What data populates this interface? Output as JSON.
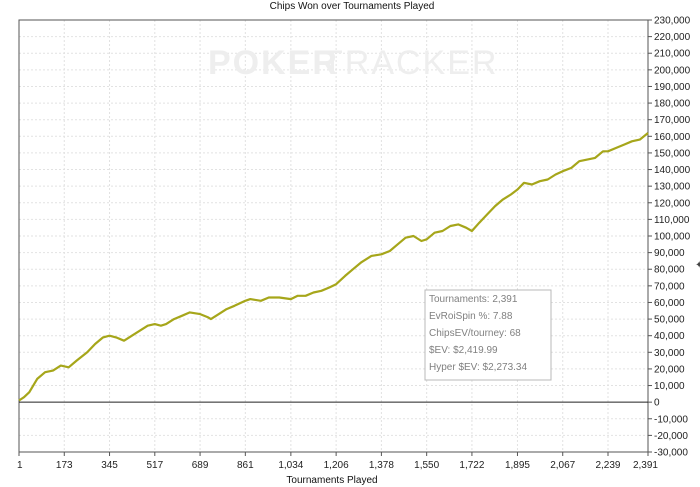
{
  "chart_data": {
    "type": "line",
    "title": "Chips Won over Tournaments Played",
    "xlabel": "Tournaments Played",
    "ylabel": "",
    "xlim": [
      1,
      2391
    ],
    "ylim": [
      -30000,
      230000
    ],
    "x_ticks": [
      "1",
      "173",
      "345",
      "517",
      "689",
      "861",
      "1,034",
      "1,206",
      "1,378",
      "1,550",
      "1,722",
      "1,895",
      "2,067",
      "2,239",
      "2,391"
    ],
    "x_tick_values": [
      1,
      173,
      345,
      517,
      689,
      861,
      1034,
      1206,
      1378,
      1550,
      1722,
      1895,
      2067,
      2239,
      2391
    ],
    "y_ticks": [
      "-30,000",
      "-20,000",
      "-10,000",
      "0",
      "10,000",
      "20,000",
      "30,000",
      "40,000",
      "50,000",
      "60,000",
      "70,000",
      "80,000",
      "90,000",
      "100,000",
      "110,000",
      "120,000",
      "130,000",
      "140,000",
      "150,000",
      "160,000",
      "170,000",
      "180,000",
      "190,000",
      "200,000",
      "210,000",
      "220,000",
      "230,000"
    ],
    "y_tick_values": [
      -30000,
      -20000,
      -10000,
      0,
      10000,
      20000,
      30000,
      40000,
      50000,
      60000,
      70000,
      80000,
      90000,
      100000,
      110000,
      120000,
      130000,
      140000,
      150000,
      160000,
      170000,
      180000,
      190000,
      200000,
      210000,
      220000,
      230000
    ],
    "grid": true,
    "series": [
      {
        "color": "#a6a61a",
        "x": [
          1,
          20,
          40,
          70,
          100,
          130,
          160,
          190,
          220,
          260,
          290,
          320,
          345,
          370,
          400,
          430,
          460,
          490,
          517,
          540,
          560,
          590,
          620,
          650,
          689,
          720,
          730,
          760,
          790,
          820,
          861,
          880,
          920,
          950,
          990,
          1034,
          1060,
          1090,
          1120,
          1150,
          1180,
          1206,
          1240,
          1270,
          1300,
          1340,
          1378,
          1410,
          1440,
          1470,
          1500,
          1530,
          1550,
          1580,
          1610,
          1640,
          1670,
          1700,
          1722,
          1750,
          1780,
          1810,
          1840,
          1870,
          1895,
          1920,
          1950,
          1980,
          2010,
          2040,
          2067,
          2100,
          2130,
          2160,
          2190,
          2220,
          2239,
          2270,
          2300,
          2330,
          2360,
          2391
        ],
        "y": [
          1000,
          3000,
          6000,
          14000,
          18000,
          19000,
          22000,
          21000,
          25000,
          30000,
          35000,
          39000,
          40000,
          39000,
          37000,
          40000,
          43000,
          46000,
          47000,
          46000,
          47000,
          50000,
          52000,
          54000,
          53000,
          51000,
          50000,
          53000,
          56000,
          58000,
          61000,
          62000,
          61000,
          63000,
          63000,
          62000,
          64000,
          64000,
          66000,
          67000,
          69000,
          71000,
          76000,
          80000,
          84000,
          88000,
          89000,
          91000,
          95000,
          99000,
          100000,
          97000,
          98000,
          102000,
          103000,
          106000,
          107000,
          105000,
          103000,
          108000,
          113000,
          118000,
          122000,
          125000,
          128000,
          132000,
          131000,
          133000,
          134000,
          137000,
          139000,
          141000,
          145000,
          146000,
          147000,
          151000,
          151000,
          153000,
          155000,
          157000,
          158000,
          162000
        ]
      }
    ],
    "annotations": [
      "Tournaments: 2,391",
      "EvRoiSpin %: 7.88",
      "ChipsEV/tourney: 68",
      "$EV: $2,419.99",
      "Hyper $EV: $2,273.34"
    ],
    "watermark": {
      "part1": "POKER",
      "part2": "TRACKER"
    }
  }
}
